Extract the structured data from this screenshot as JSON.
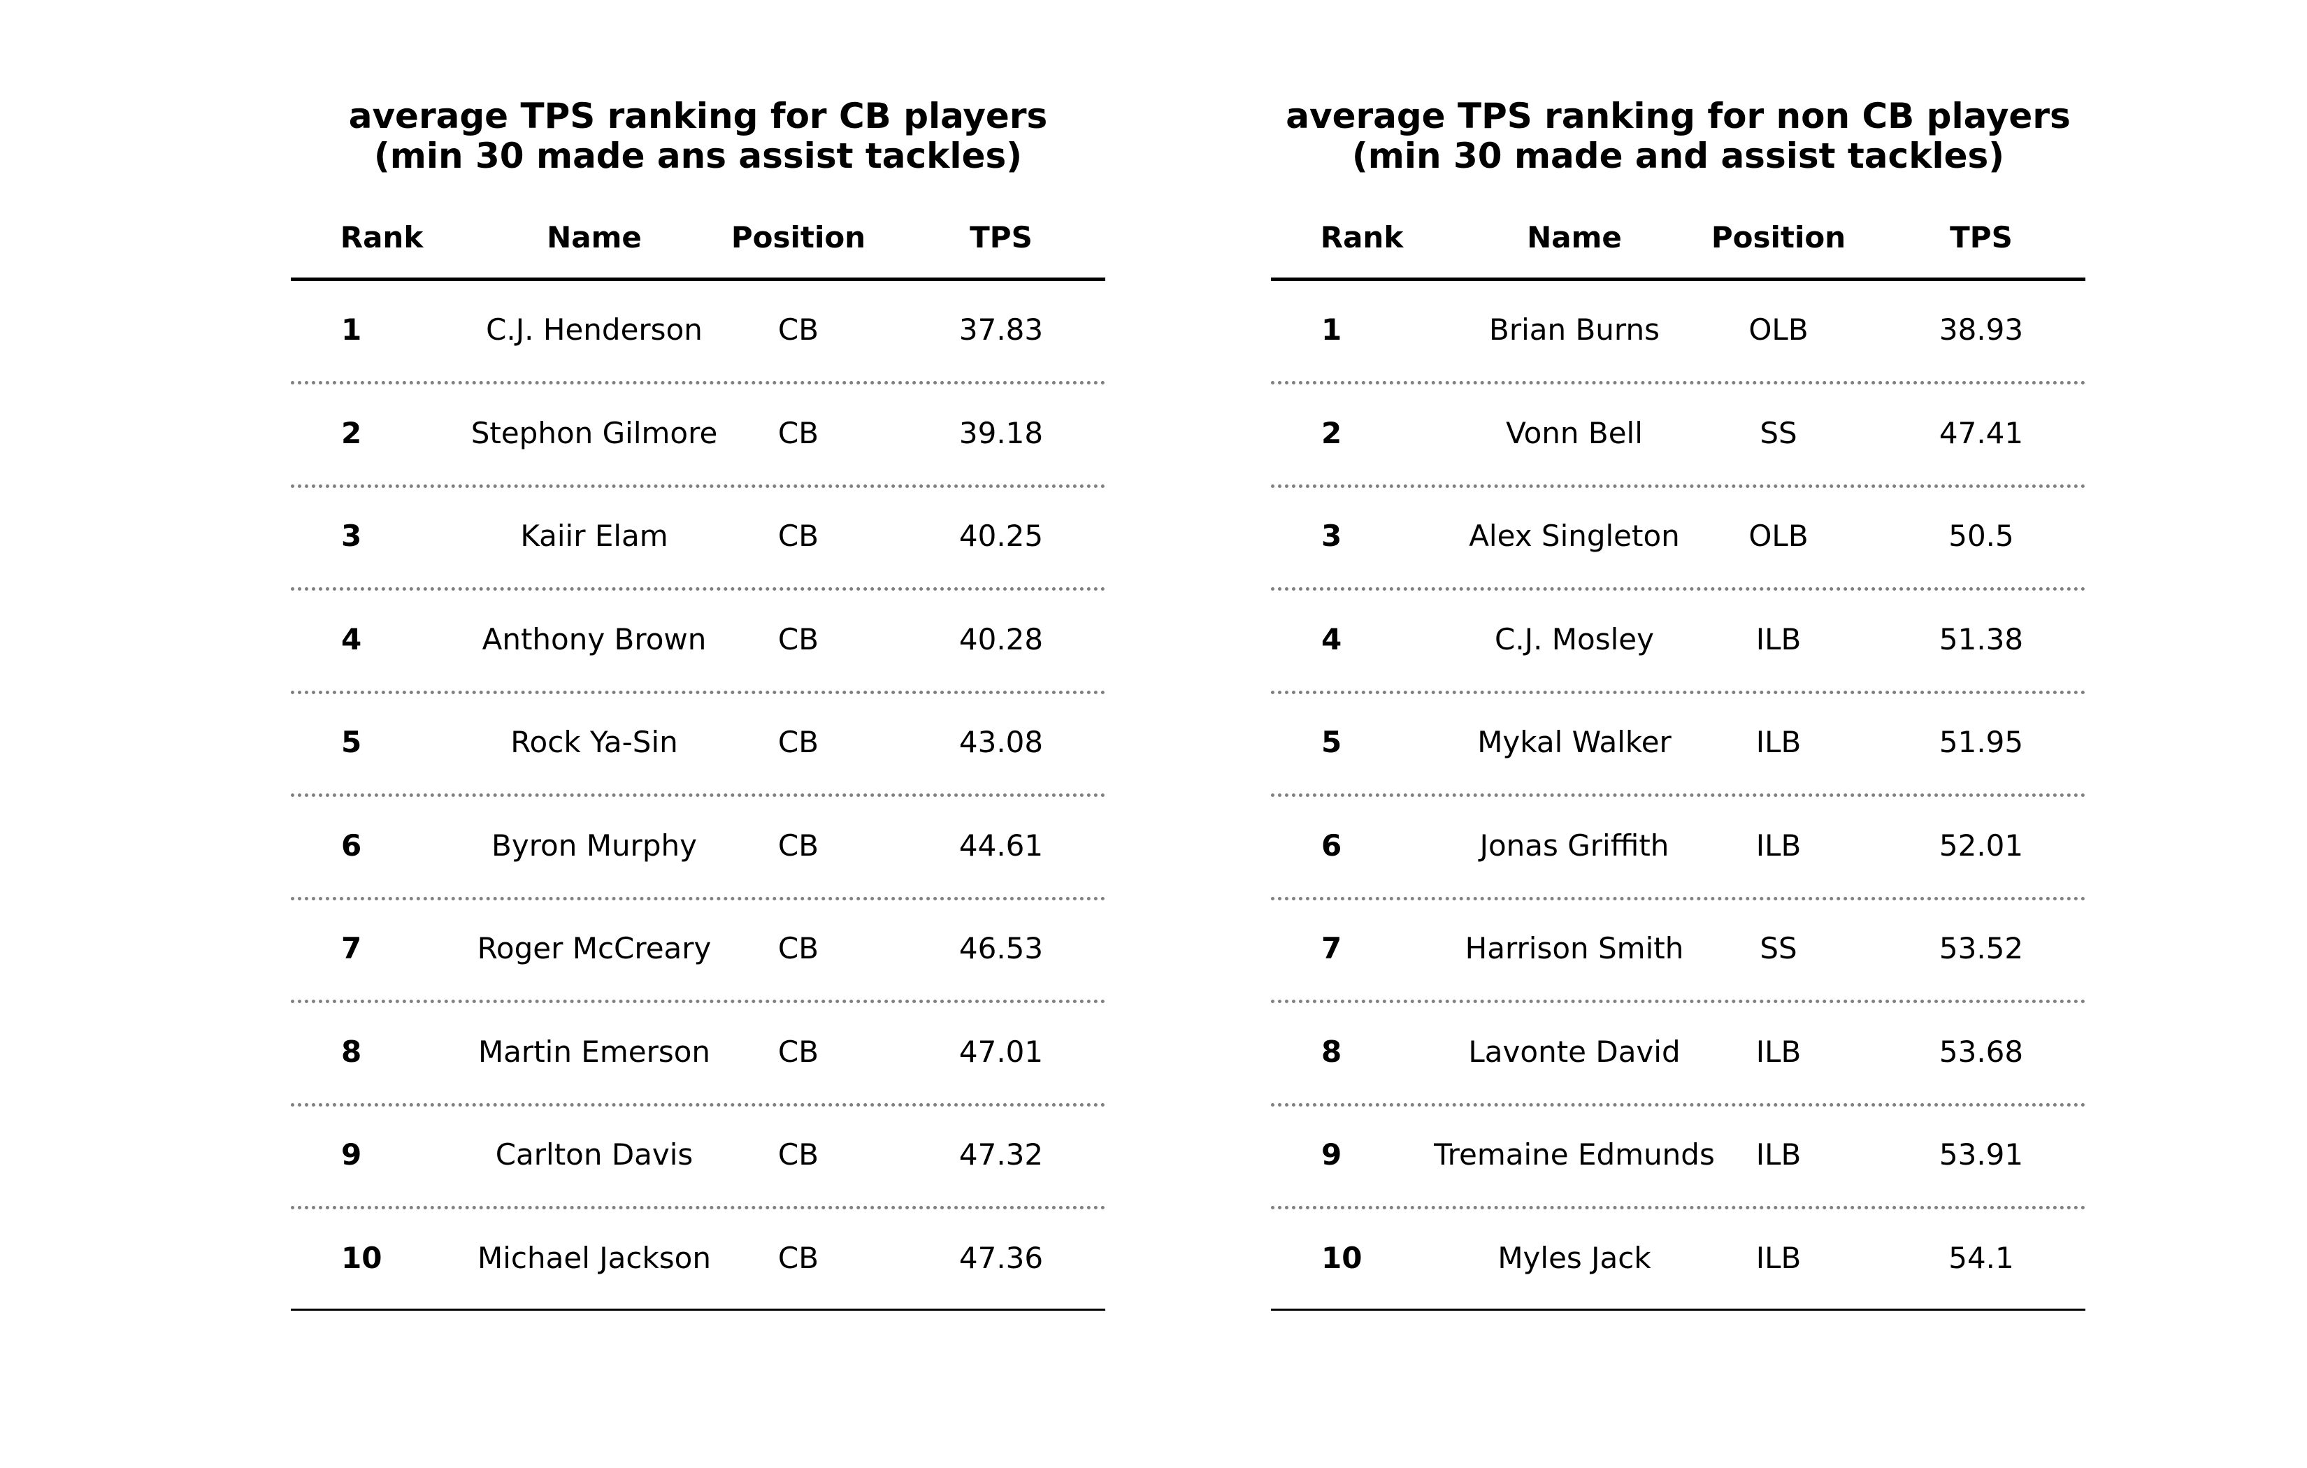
{
  "chart_data": [
    {
      "type": "table",
      "title": [
        "average TPS ranking for CB players",
        "(min 30 made ans assist tackles)"
      ],
      "columns": [
        "Rank",
        "Name",
        "Position",
        "TPS"
      ],
      "rows": [
        [
          "1",
          "C.J. Henderson",
          "CB",
          "37.83"
        ],
        [
          "2",
          "Stephon Gilmore",
          "CB",
          "39.18"
        ],
        [
          "3",
          "Kaiir Elam",
          "CB",
          "40.25"
        ],
        [
          "4",
          "Anthony Brown",
          "CB",
          "40.28"
        ],
        [
          "5",
          "Rock Ya-Sin",
          "CB",
          "43.08"
        ],
        [
          "6",
          "Byron Murphy",
          "CB",
          "44.61"
        ],
        [
          "7",
          "Roger McCreary",
          "CB",
          "46.53"
        ],
        [
          "8",
          "Martin Emerson",
          "CB",
          "47.01"
        ],
        [
          "9",
          "Carlton Davis",
          "CB",
          "47.32"
        ],
        [
          "10",
          "Michael Jackson",
          "CB",
          "47.36"
        ]
      ],
      "values": [
        37.83,
        39.18,
        40.25,
        40.28,
        43.08,
        44.61,
        46.53,
        47.01,
        47.32,
        47.36
      ]
    },
    {
      "type": "table",
      "title": [
        "average TPS ranking for non CB players",
        "(min 30 made and assist tackles)"
      ],
      "columns": [
        "Rank",
        "Name",
        "Position",
        "TPS"
      ],
      "rows": [
        [
          "1",
          "Brian Burns",
          "OLB",
          "38.93"
        ],
        [
          "2",
          "Vonn Bell",
          "SS",
          "47.41"
        ],
        [
          "3",
          "Alex Singleton",
          "OLB",
          "50.5"
        ],
        [
          "4",
          "C.J. Mosley",
          "ILB",
          "51.38"
        ],
        [
          "5",
          "Mykal Walker",
          "ILB",
          "51.95"
        ],
        [
          "6",
          "Jonas Griffith",
          "ILB",
          "52.01"
        ],
        [
          "7",
          "Harrison Smith",
          "SS",
          "53.52"
        ],
        [
          "8",
          "Lavonte David",
          "ILB",
          "53.68"
        ],
        [
          "9",
          "Tremaine Edmunds",
          "ILB",
          "53.91"
        ],
        [
          "10",
          "Myles Jack",
          "ILB",
          "54.1"
        ]
      ],
      "values": [
        38.93,
        47.41,
        50.5,
        51.38,
        51.95,
        52.01,
        53.52,
        53.68,
        53.91,
        54.1
      ]
    }
  ]
}
